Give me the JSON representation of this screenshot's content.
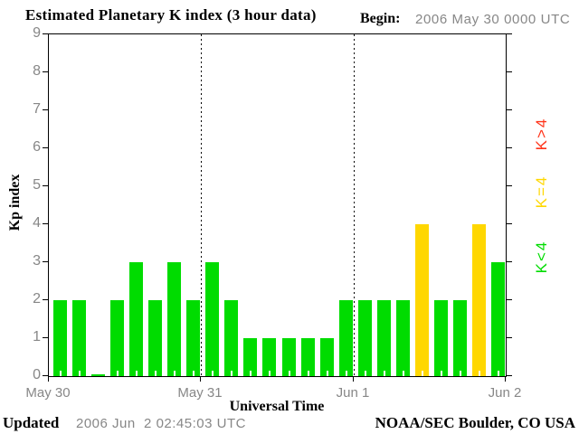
{
  "begin": {
    "label": "Begin:",
    "value": "2006 May 30 0000 UTC"
  },
  "footer": {
    "updated_label": "Updated",
    "updated_value": "2006 Jun  2 02:45:03 UTC",
    "credit": "NOAA/SEC Boulder, CO USA"
  },
  "chart_data": {
    "type": "bar",
    "title": "Estimated Planetary K index (3 hour data)",
    "xlabel": "Universal Time",
    "ylabel": "Kp index",
    "ylim": [
      0,
      9
    ],
    "yticks": [
      0,
      1,
      2,
      3,
      4,
      5,
      6,
      7,
      8,
      9
    ],
    "x_day_labels": [
      "May 30",
      "May 31",
      "Jun 1",
      "Jun 2"
    ],
    "bars_per_day": 8,
    "interval_hours": 3,
    "values": [
      2,
      2,
      0,
      2,
      3,
      2,
      3,
      2,
      3,
      2,
      1,
      1,
      1,
      1,
      1,
      2,
      2,
      2,
      2,
      4,
      2,
      2,
      4,
      3
    ],
    "colors": {
      "k_below_4": "#00DC00",
      "k_equal_4": "#FFD700",
      "k_above_4": "#FF3319",
      "axis": "#000000",
      "tick_label": "#878787"
    },
    "legend": [
      {
        "label": "K>4",
        "color_key": "k_above_4"
      },
      {
        "label": "K=4",
        "color_key": "k_equal_4"
      },
      {
        "label": "K<4",
        "color_key": "k_below_4"
      }
    ],
    "layout": {
      "grid": "dotted vertical lines at day boundaries",
      "legend_position": "right, rotated 90deg",
      "bar_minor_ticks": "white ticks at bar bases"
    }
  }
}
